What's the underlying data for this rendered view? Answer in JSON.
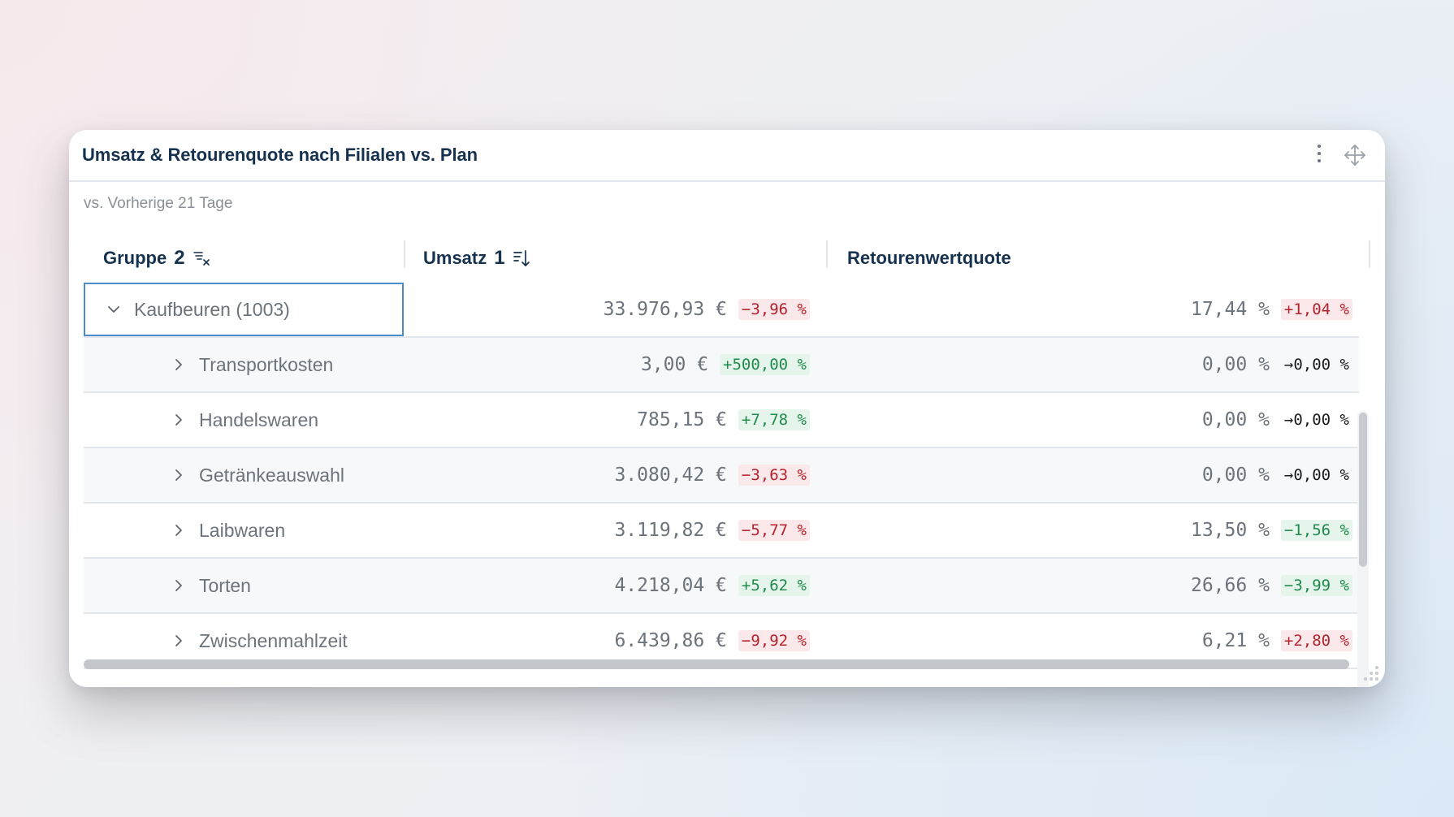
{
  "widget": {
    "title": "Umsatz & Retourenquote nach Filialen vs. Plan",
    "subtitle": "vs. Vorherige 21 Tage",
    "menu_icon": "kebab-menu-icon",
    "move_icon": "move-arrows-icon"
  },
  "columns": {
    "group": {
      "label": "Gruppe",
      "order": "2",
      "icon": "clear-sort-icon"
    },
    "revenue": {
      "label": "Umsatz",
      "order": "1",
      "icon": "sort-descending-icon"
    },
    "return_rate": {
      "label": "Retourenwertquote"
    }
  },
  "rows": [
    {
      "label": "Kaufbeuren (1003)",
      "expanded": true,
      "level": 0,
      "revenue": "33.976,93 €",
      "revenue_delta": "−3,96 %",
      "revenue_trend": "neg",
      "rate": "17,44 %",
      "rate_delta": "+1,04 %",
      "rate_trend": "neg"
    },
    {
      "label": "Transportkosten",
      "expanded": false,
      "level": 1,
      "revenue": "3,00 €",
      "revenue_delta": "+500,00 %",
      "revenue_trend": "pos",
      "rate": "0,00 %",
      "rate_delta": "→0,00 %",
      "rate_trend": "neutral"
    },
    {
      "label": "Handelswaren",
      "expanded": false,
      "level": 1,
      "revenue": "785,15 €",
      "revenue_delta": "+7,78 %",
      "revenue_trend": "pos",
      "rate": "0,00 %",
      "rate_delta": "→0,00 %",
      "rate_trend": "neutral"
    },
    {
      "label": "Getränkeauswahl",
      "expanded": false,
      "level": 1,
      "revenue": "3.080,42 €",
      "revenue_delta": "−3,63 %",
      "revenue_trend": "neg",
      "rate": "0,00 %",
      "rate_delta": "→0,00 %",
      "rate_trend": "neutral"
    },
    {
      "label": "Laibwaren",
      "expanded": false,
      "level": 1,
      "revenue": "3.119,82 €",
      "revenue_delta": "−5,77 %",
      "revenue_trend": "neg",
      "rate": "13,50 %",
      "rate_delta": "−1,56 %",
      "rate_trend": "pos"
    },
    {
      "label": "Torten",
      "expanded": false,
      "level": 1,
      "revenue": "4.218,04 €",
      "revenue_delta": "+5,62 %",
      "revenue_trend": "pos",
      "rate": "26,66 %",
      "rate_delta": "−3,99 %",
      "rate_trend": "pos"
    },
    {
      "label": "Zwischenmahlzeit",
      "expanded": false,
      "level": 1,
      "revenue": "6.439,86 €",
      "revenue_delta": "−9,92 %",
      "revenue_trend": "neg",
      "rate": "6,21 %",
      "rate_delta": "+2,80 %",
      "rate_trend": "neg"
    }
  ],
  "colors": {
    "title": "#16324f",
    "negative": "#b3232d",
    "negative_bg": "#fbe8ea",
    "positive": "#1f8a4c",
    "positive_bg": "#e5f5ec",
    "focus": "#4b8ccc"
  }
}
